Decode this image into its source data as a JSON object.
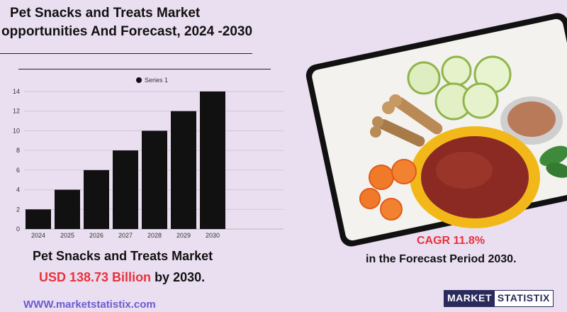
{
  "header": {
    "title_line1": "Pet Snacks and Treats Market",
    "title_line2": "opportunities And Forecast, 2024 -2030"
  },
  "chart_data": {
    "type": "bar",
    "categories": [
      "2024",
      "2025",
      "2026",
      "2027",
      "2028",
      "2029",
      "2030"
    ],
    "series": [
      {
        "name": "Series 1",
        "values": [
          2,
          4,
          6,
          8,
          10,
          12,
          14
        ]
      }
    ],
    "ylim": [
      0,
      14
    ],
    "yticks": [
      "0",
      "2",
      "4",
      "6",
      "8",
      "10",
      "12",
      "14"
    ],
    "grid": true,
    "legend_position": "top-center",
    "bar_color": "#111111"
  },
  "highlight": {
    "cagr": "CAGR  11.8%",
    "forecast": "in the  Forecast Period  2030."
  },
  "summary": {
    "line1": "Pet Snacks and Treats Market",
    "value": "USD 138.73 Billion",
    "suffix": " by 2030."
  },
  "footer": {
    "website": "WWW.marketstatistix.com",
    "logo_part1": "MARKET",
    "logo_part2": "STATISTIX"
  },
  "colors": {
    "background": "#eadff0",
    "accent_red": "#e8323c",
    "link_purple": "#6b5bd3",
    "logo_navy": "#2b2a5c"
  }
}
